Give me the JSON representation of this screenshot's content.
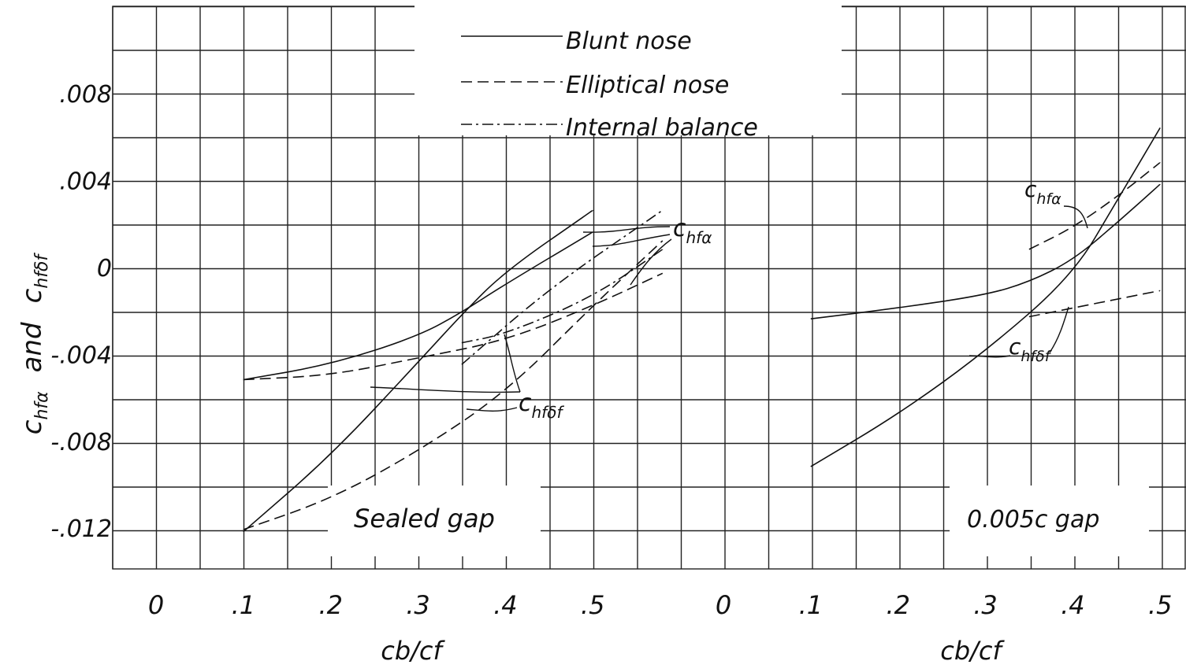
{
  "y_axis": {
    "label_ch": "c",
    "label_ch_sub": "hfα",
    "label_and": "and",
    "label_ch2": "c",
    "label_ch2_sub": "hfδf",
    "ticks": [
      ".008",
      ".004",
      "0",
      "-.004",
      "-.008",
      "-.012"
    ]
  },
  "legend": {
    "entries": [
      "Blunt nose",
      "Elliptical nose",
      "Internal balance"
    ]
  },
  "annotations": {
    "left_alpha": {
      "base": "c",
      "sub": "hfα"
    },
    "left_delta": {
      "base": "c",
      "sub": "hfδf"
    },
    "right_alpha": {
      "base": "c",
      "sub": "hfα"
    },
    "right_delta": {
      "base": "c",
      "sub": "hfδf"
    }
  },
  "chart_data": [
    {
      "type": "line",
      "title": "Sealed gap",
      "xlabel": "cb/cf",
      "ylabel": "chfα and chfδf",
      "x_ticks": [
        "0",
        ".1",
        ".2",
        ".3",
        ".4",
        ".5"
      ],
      "xlim": [
        0,
        0.6
      ],
      "ylim": [
        -0.014,
        0.012
      ],
      "series": [
        {
          "name": "Blunt nose",
          "coefficient": "chfα",
          "style": "solid",
          "x": [
            0.1,
            0.2,
            0.3,
            0.35,
            0.4,
            0.5
          ],
          "y": [
            -0.0052,
            -0.0045,
            -0.0032,
            -0.0021,
            -0.0008,
            0.0016
          ]
        },
        {
          "name": "Blunt nose",
          "coefficient": "chfδf",
          "style": "solid",
          "x": [
            0.1,
            0.2,
            0.3,
            0.35,
            0.4,
            0.5
          ],
          "y": [
            -0.0122,
            -0.0087,
            -0.0044,
            -0.0022,
            -0.0002,
            0.0026
          ]
        },
        {
          "name": "Elliptical nose",
          "coefficient": "chfα",
          "style": "dashed",
          "x": [
            0.1,
            0.2,
            0.3,
            0.4,
            0.5,
            0.58
          ],
          "y": [
            -0.0052,
            -0.005,
            -0.0042,
            -0.0034,
            -0.0018,
            -0.0003
          ]
        },
        {
          "name": "Elliptical nose",
          "coefficient": "chfδf",
          "style": "dashed",
          "x": [
            0.1,
            0.2,
            0.3,
            0.4,
            0.5,
            0.58
          ],
          "y": [
            -0.0121,
            -0.0107,
            -0.0085,
            -0.0058,
            -0.0018,
            0.0012
          ]
        },
        {
          "name": "Internal balance",
          "coefficient": "chfα",
          "style": "dashdot",
          "x": [
            0.35,
            0.4,
            0.5,
            0.58
          ],
          "y": [
            -0.0035,
            -0.0031,
            -0.0014,
            0.0008
          ]
        },
        {
          "name": "Internal balance",
          "coefficient": "chfδf",
          "style": "dashdot",
          "x": [
            0.35,
            0.45,
            0.58
          ],
          "y": [
            -0.0045,
            -0.001,
            0.0026
          ]
        }
      ]
    },
    {
      "type": "line",
      "title": "0.005c gap",
      "xlabel": "cb/cf",
      "ylabel": "chfα and chfδf",
      "x_ticks": [
        "0",
        ".1",
        ".2",
        ".3",
        ".4",
        ".5"
      ],
      "xlim": [
        0,
        0.6
      ],
      "ylim": [
        -0.014,
        0.012
      ],
      "series": [
        {
          "name": "Blunt nose",
          "coefficient": "chfα",
          "style": "solid",
          "x": [
            0.1,
            0.2,
            0.3,
            0.35,
            0.4,
            0.45,
            0.5
          ],
          "y": [
            -0.0024,
            -0.0019,
            -0.0013,
            -0.0007,
            0.0003,
            0.002,
            0.0038
          ]
        },
        {
          "name": "Blunt nose",
          "coefficient": "chfδf",
          "style": "solid",
          "x": [
            0.1,
            0.2,
            0.3,
            0.4,
            0.45,
            0.5
          ],
          "y": [
            -0.0092,
            -0.0068,
            -0.0039,
            -0.0004,
            0.003,
            0.0064
          ]
        },
        {
          "name": "Elliptical nose",
          "coefficient": "chfα",
          "style": "dashed",
          "x": [
            0.35,
            0.5
          ],
          "y": [
            -0.0023,
            -0.0011
          ]
        },
        {
          "name": "Elliptical nose",
          "coefficient": "chfδf",
          "style": "dashed",
          "x": [
            0.35,
            0.4,
            0.45,
            0.5
          ],
          "y": [
            0.0008,
            0.0018,
            0.0032,
            0.0048
          ]
        }
      ]
    }
  ]
}
